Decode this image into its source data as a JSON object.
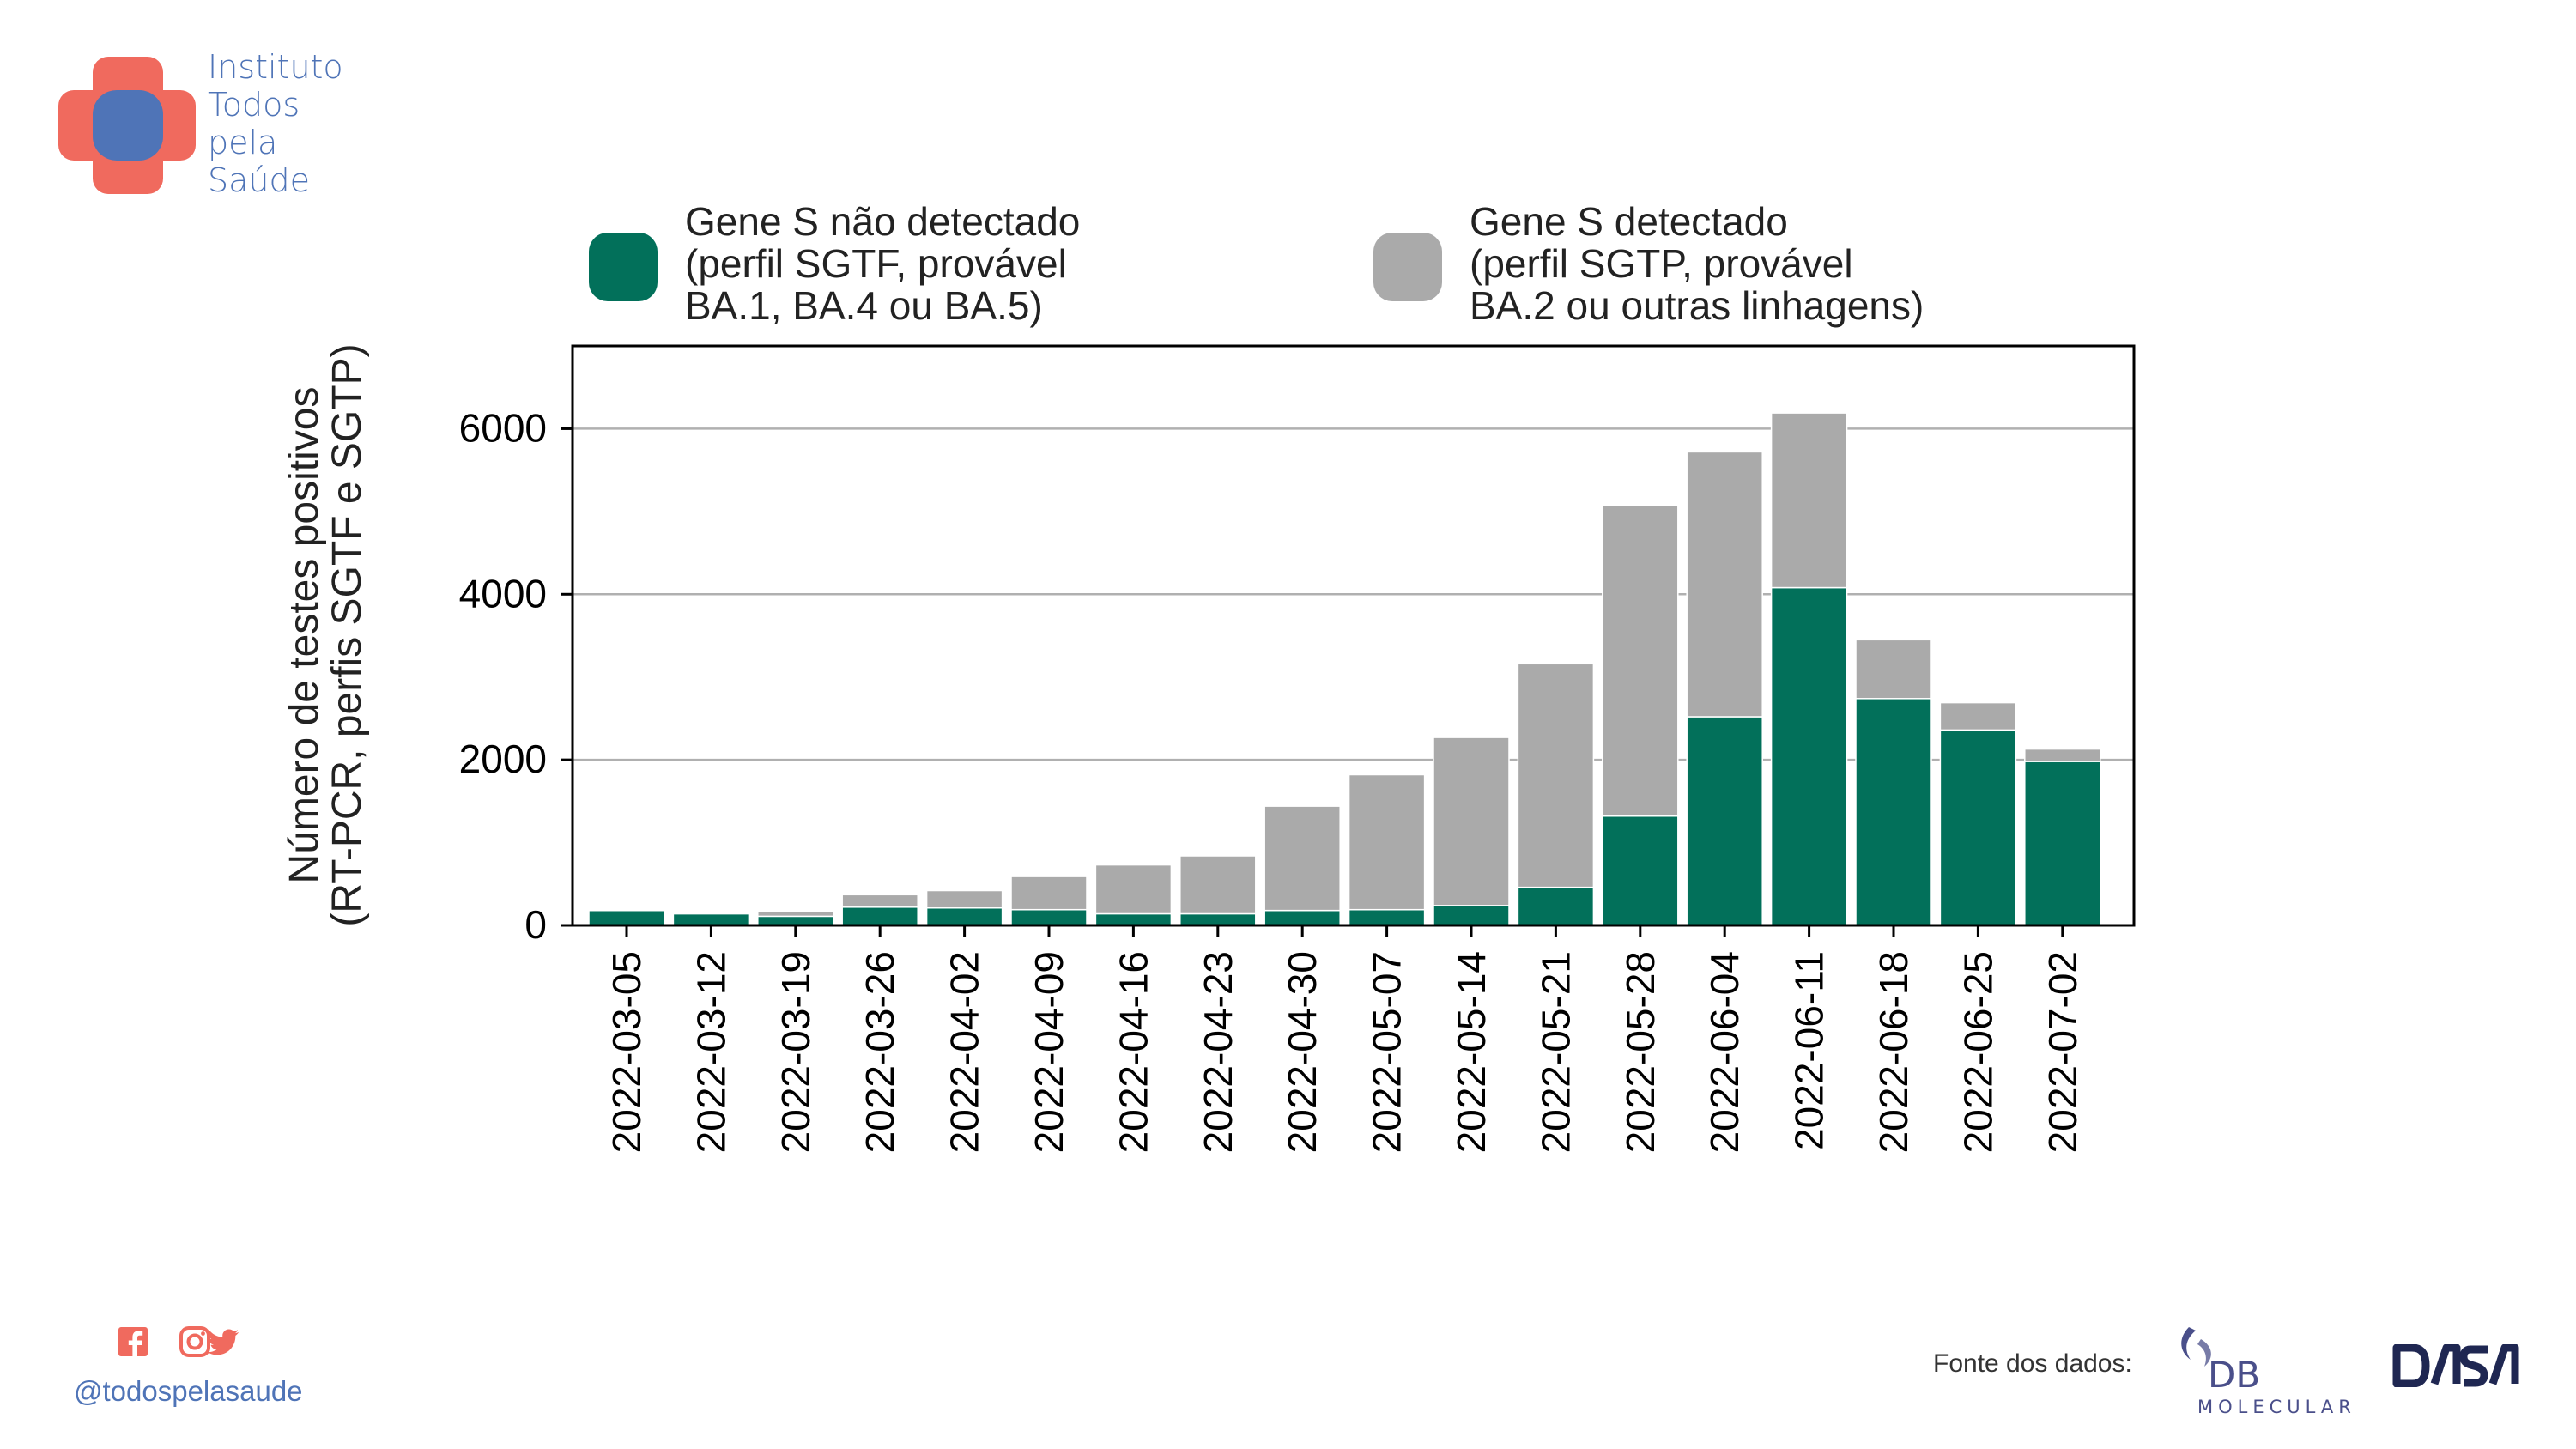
{
  "branding": {
    "org_lines": [
      "Instituto",
      "Todos",
      "pela",
      "Saúde"
    ],
    "logo_colors": {
      "cross": "#f06a5e",
      "center": "#4f74b7"
    },
    "social_icons": [
      "facebook-icon",
      "instagram-icon",
      "twitter-icon"
    ],
    "social_icon_color": "#f06a5e",
    "handle": "@todospelasaude"
  },
  "source": {
    "label": "Fonte dos dados:",
    "logos": [
      {
        "name": "db-molecular-logo",
        "text_main": "DB",
        "text_sub": "MOLECULAR",
        "color": "#4a4f8a"
      },
      {
        "name": "dasa-logo",
        "text": "DASA",
        "color": "#1f2752"
      }
    ]
  },
  "chart_data": {
    "type": "bar",
    "stacked": true,
    "title": "",
    "xlabel": "",
    "ylabel_lines": [
      "Número de testes positivos",
      "(RT-PCR, perfis SGTF e SGTP)"
    ],
    "categories": [
      "2022-03-05",
      "2022-03-12",
      "2022-03-19",
      "2022-03-26",
      "2022-04-02",
      "2022-04-09",
      "2022-04-16",
      "2022-04-23",
      "2022-04-30",
      "2022-05-07",
      "2022-05-14",
      "2022-05-21",
      "2022-05-28",
      "2022-06-04",
      "2022-06-11",
      "2022-06-18",
      "2022-06-25",
      "2022-07-02"
    ],
    "ylim": [
      0,
      7000
    ],
    "yticks": [
      0,
      2000,
      4000,
      6000
    ],
    "grid": true,
    "legend_position": "top",
    "series": [
      {
        "name_lines": [
          "Gene S não detectado",
          "(perfil SGTF, provável",
          "BA.1, BA.4 ou BA.5)"
        ],
        "color": "#02705a",
        "values": [
          180,
          140,
          110,
          220,
          210,
          190,
          140,
          140,
          180,
          190,
          240,
          460,
          1320,
          2520,
          4080,
          2740,
          2360,
          1980
        ]
      },
      {
        "name_lines": [
          "Gene S detectado",
          "(perfil SGTP, provável",
          "BA.2 ou outras linhagens)"
        ],
        "color": "#aaaaaa",
        "values": [
          10,
          15,
          55,
          150,
          210,
          400,
          590,
          700,
          1260,
          1630,
          2030,
          2700,
          3750,
          3200,
          2110,
          710,
          330,
          150
        ]
      }
    ]
  }
}
